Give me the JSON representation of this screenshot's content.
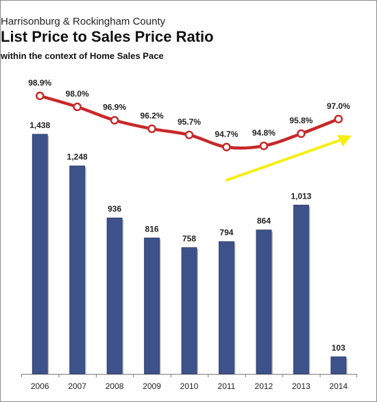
{
  "chart_data": {
    "type": "bar",
    "supertitle": "Harrisonburg & Rockingham County",
    "title": "List Price to Sales Price Ratio",
    "subtitle": "within the context of Home Sales Pace",
    "categories": [
      "2006",
      "2007",
      "2008",
      "2009",
      "2010",
      "2011",
      "2012",
      "2013",
      "2014"
    ],
    "series": [
      {
        "type": "bar",
        "values": [
          1438,
          1248,
          936,
          816,
          758,
          794,
          864,
          1013,
          103
        ],
        "labels": [
          "1,438",
          "1,248",
          "936",
          "816",
          "758",
          "794",
          "864",
          "1,013",
          "103"
        ],
        "color": "#3d528a"
      },
      {
        "type": "line",
        "values": [
          98.9,
          98.0,
          96.9,
          96.2,
          95.7,
          94.7,
          94.8,
          95.8,
          97.0
        ],
        "labels": [
          "98.9%",
          "98.0%",
          "96.9%",
          "96.2%",
          "95.7%",
          "94.7%",
          "94.8%",
          "95.8%",
          "97.0%"
        ],
        "color": "#c8282a"
      }
    ],
    "annotation": {
      "shape": "arrow",
      "color": "#f5ee12"
    },
    "grid": false,
    "legend": "none"
  }
}
